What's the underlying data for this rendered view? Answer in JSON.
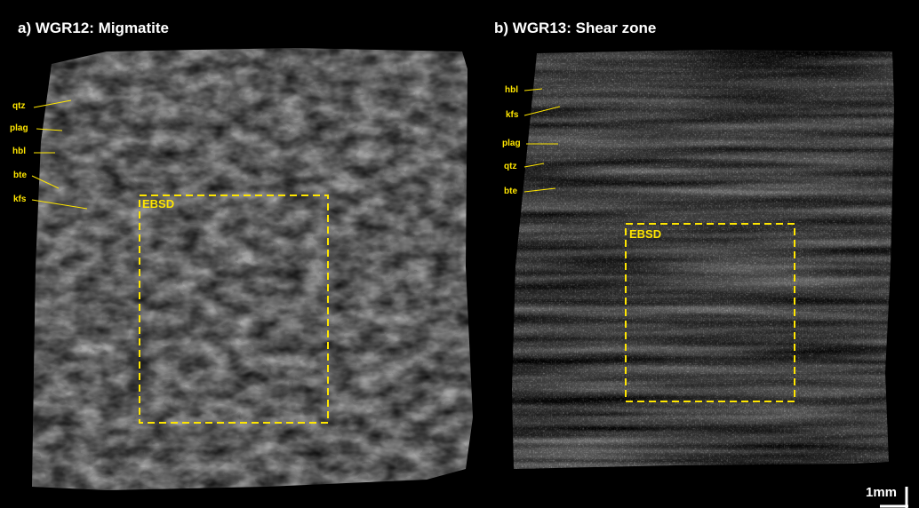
{
  "panels": {
    "a": {
      "title": "a) WGR12: Migmatite",
      "box_label": "EBSD",
      "minerals": [
        "qtz",
        "plag",
        "hbl",
        "bte",
        "kfs"
      ]
    },
    "b": {
      "title": "b) WGR13: Shear zone",
      "box_label": "EBSD",
      "minerals": [
        "hbl",
        "kfs",
        "plag",
        "qtz",
        "bte"
      ]
    }
  },
  "scale_bar": {
    "label": "1mm"
  },
  "colors": {
    "annotation": "#ffe600",
    "title": "#ffffff",
    "background": "#000000"
  }
}
